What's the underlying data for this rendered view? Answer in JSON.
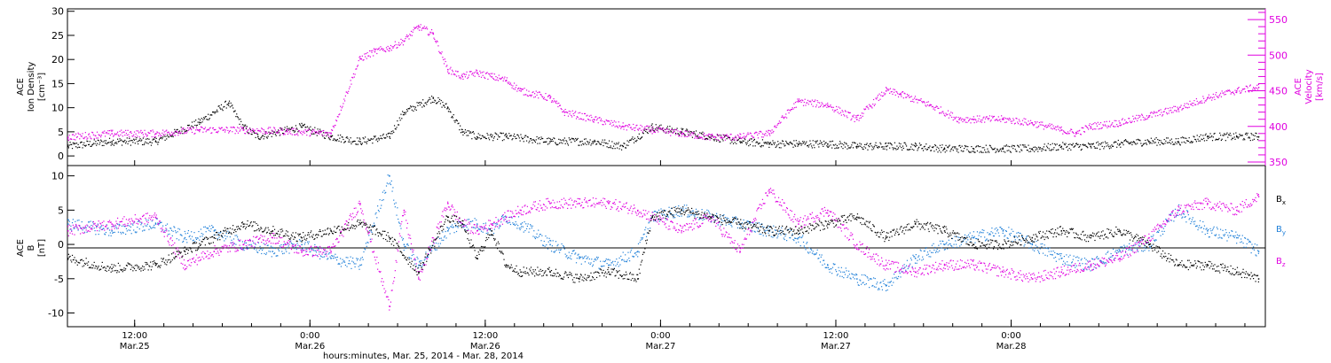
{
  "colors": {
    "black": "#000000",
    "magenta": "#e000e0",
    "blue": "#1e7fd8"
  },
  "chart_data": [
    {
      "type": "scatter",
      "panel": "top",
      "ylabel_lines": [
        "ACE",
        "Ion Density",
        "[cm⁻³]"
      ],
      "y2label_lines": [
        "ACE",
        "Velocity",
        "[km/s]"
      ],
      "ylim": [
        -2,
        30.5
      ],
      "y2lim": [
        345,
        565
      ],
      "yticks": [
        "0",
        "5",
        "10",
        "15",
        "20",
        "25",
        "30"
      ],
      "y2ticks": [
        "350",
        "400",
        "450",
        "500",
        "550"
      ],
      "x_hours_range": [
        0,
        82
      ],
      "series": [
        {
          "axis": "left",
          "color": "black",
          "x": [
            0,
            3,
            6,
            9,
            11,
            12,
            13,
            16,
            18,
            20,
            22,
            23,
            25,
            26,
            27,
            28,
            29,
            30,
            33,
            36,
            38,
            40,
            42,
            44,
            46,
            48,
            50,
            52,
            54,
            56,
            58,
            60,
            62,
            64,
            66,
            68,
            70,
            72,
            74,
            76,
            78,
            80,
            81.5
          ],
          "y": [
            2,
            3,
            3,
            7,
            11,
            6,
            4,
            6,
            4,
            3,
            4,
            9,
            12,
            10,
            5,
            4,
            4,
            4,
            3,
            3,
            2,
            6,
            5,
            4,
            3,
            2.5,
            2.5,
            2.5,
            2,
            2,
            2,
            1.5,
            1.5,
            1.5,
            1.5,
            2,
            2,
            2.5,
            3,
            3,
            4,
            4,
            4
          ]
        },
        {
          "axis": "right",
          "color": "magenta",
          "x": [
            0,
            3,
            6,
            9,
            12,
            15,
            18,
            20,
            21,
            22,
            23,
            24,
            25,
            26,
            27,
            28,
            29,
            30,
            31,
            33,
            34,
            36,
            38,
            40,
            42,
            44,
            46,
            48,
            50,
            52,
            54,
            56,
            57,
            59,
            61,
            62,
            64,
            66,
            68,
            69,
            70,
            72,
            74,
            76,
            78,
            80,
            81.5
          ],
          "y": [
            385,
            390,
            390,
            395,
            395,
            393,
            390,
            495,
            505,
            510,
            520,
            540,
            530,
            480,
            470,
            475,
            470,
            465,
            450,
            440,
            420,
            410,
            400,
            395,
            390,
            385,
            385,
            390,
            435,
            430,
            410,
            450,
            445,
            430,
            410,
            410,
            410,
            405,
            395,
            390,
            400,
            405,
            415,
            425,
            440,
            450,
            455
          ]
        }
      ]
    },
    {
      "type": "scatter",
      "panel": "bottom",
      "ylabel_lines": [
        "ACE",
        "B",
        "[nT]"
      ],
      "ylim": [
        -12,
        11.5
      ],
      "yticks": [
        "-10",
        "-5",
        "0",
        "5",
        "10"
      ],
      "x_hours_range": [
        0,
        82
      ],
      "x_tick_labels": [
        {
          "time": "12:00",
          "date": "Mar.25"
        },
        {
          "time": "0:00",
          "date": "Mar.26"
        },
        {
          "time": "12:00",
          "date": "Mar.26"
        },
        {
          "time": "0:00",
          "date": "Mar.27"
        },
        {
          "time": "12:00",
          "date": "Mar.27"
        },
        {
          "time": "0:00",
          "date": "Mar.28"
        }
      ],
      "xlabel": "hours:minutes, Mar. 25, 2014 - Mar. 28, 2014",
      "legend": [
        "B",
        "B",
        "B"
      ],
      "legend_subscripts": [
        "x",
        "y",
        "z"
      ],
      "series": [
        {
          "name": "Bx",
          "color": "black",
          "x": [
            0,
            3,
            6,
            8,
            10,
            12,
            14,
            16,
            18,
            20,
            22,
            24,
            26,
            27,
            28,
            29,
            30,
            31,
            33,
            35,
            37,
            39,
            40,
            42,
            44,
            46,
            48,
            50,
            52,
            54,
            56,
            58,
            60,
            62,
            64,
            66,
            68,
            70,
            72,
            74,
            76,
            78,
            80,
            81.5
          ],
          "y": [
            -2,
            -3.5,
            -3,
            -1,
            1,
            3,
            2,
            1,
            2,
            3,
            1,
            -4,
            4,
            3,
            -2,
            2,
            -3,
            -4,
            -4,
            -5,
            -4,
            -5,
            4,
            5,
            4,
            3,
            2,
            2,
            3,
            4,
            1,
            3,
            2,
            0,
            0,
            1,
            2,
            1,
            2,
            0,
            -3,
            -3,
            -4,
            -5
          ]
        },
        {
          "name": "By",
          "color": "blue",
          "x": [
            0,
            3,
            6,
            8,
            10,
            12,
            14,
            16,
            18,
            20,
            22,
            23,
            24,
            26,
            27,
            28,
            29,
            30,
            31,
            33,
            35,
            37,
            39,
            40,
            42,
            44,
            46,
            48,
            50,
            52,
            54,
            56,
            58,
            60,
            62,
            64,
            66,
            68,
            70,
            72,
            74,
            76,
            78,
            80,
            81.5
          ],
          "y": [
            3,
            2,
            3,
            1,
            2,
            0,
            -1,
            0,
            -2,
            -3,
            10,
            0,
            -3,
            2,
            3,
            3,
            2,
            4,
            3,
            0,
            -2,
            -3,
            -1,
            4,
            5,
            4,
            3,
            2,
            1,
            -3,
            -5,
            -6,
            -2,
            0,
            1,
            2,
            0,
            -2,
            -3,
            -1,
            0,
            5,
            2,
            1,
            -1
          ]
        },
        {
          "name": "Bz",
          "color": "magenta",
          "x": [
            0,
            3,
            6,
            8,
            10,
            12,
            14,
            16,
            18,
            20,
            22,
            23,
            24,
            26,
            27,
            28,
            29,
            30,
            31,
            33,
            35,
            37,
            39,
            40,
            42,
            44,
            46,
            48,
            50,
            52,
            54,
            56,
            58,
            60,
            62,
            64,
            66,
            68,
            70,
            72,
            74,
            76,
            78,
            80,
            81.5
          ],
          "y": [
            2,
            3,
            4,
            -3,
            -1,
            0,
            1,
            -1,
            -1,
            6,
            -9,
            5,
            -5,
            6,
            3,
            2,
            3,
            4,
            5,
            6,
            6,
            6,
            5,
            4,
            2,
            4,
            -1,
            8,
            3,
            5,
            0,
            -3,
            -4,
            -3,
            -3,
            -4,
            -5,
            -4,
            -3,
            -2,
            1,
            5,
            6,
            5,
            7
          ]
        }
      ]
    }
  ]
}
